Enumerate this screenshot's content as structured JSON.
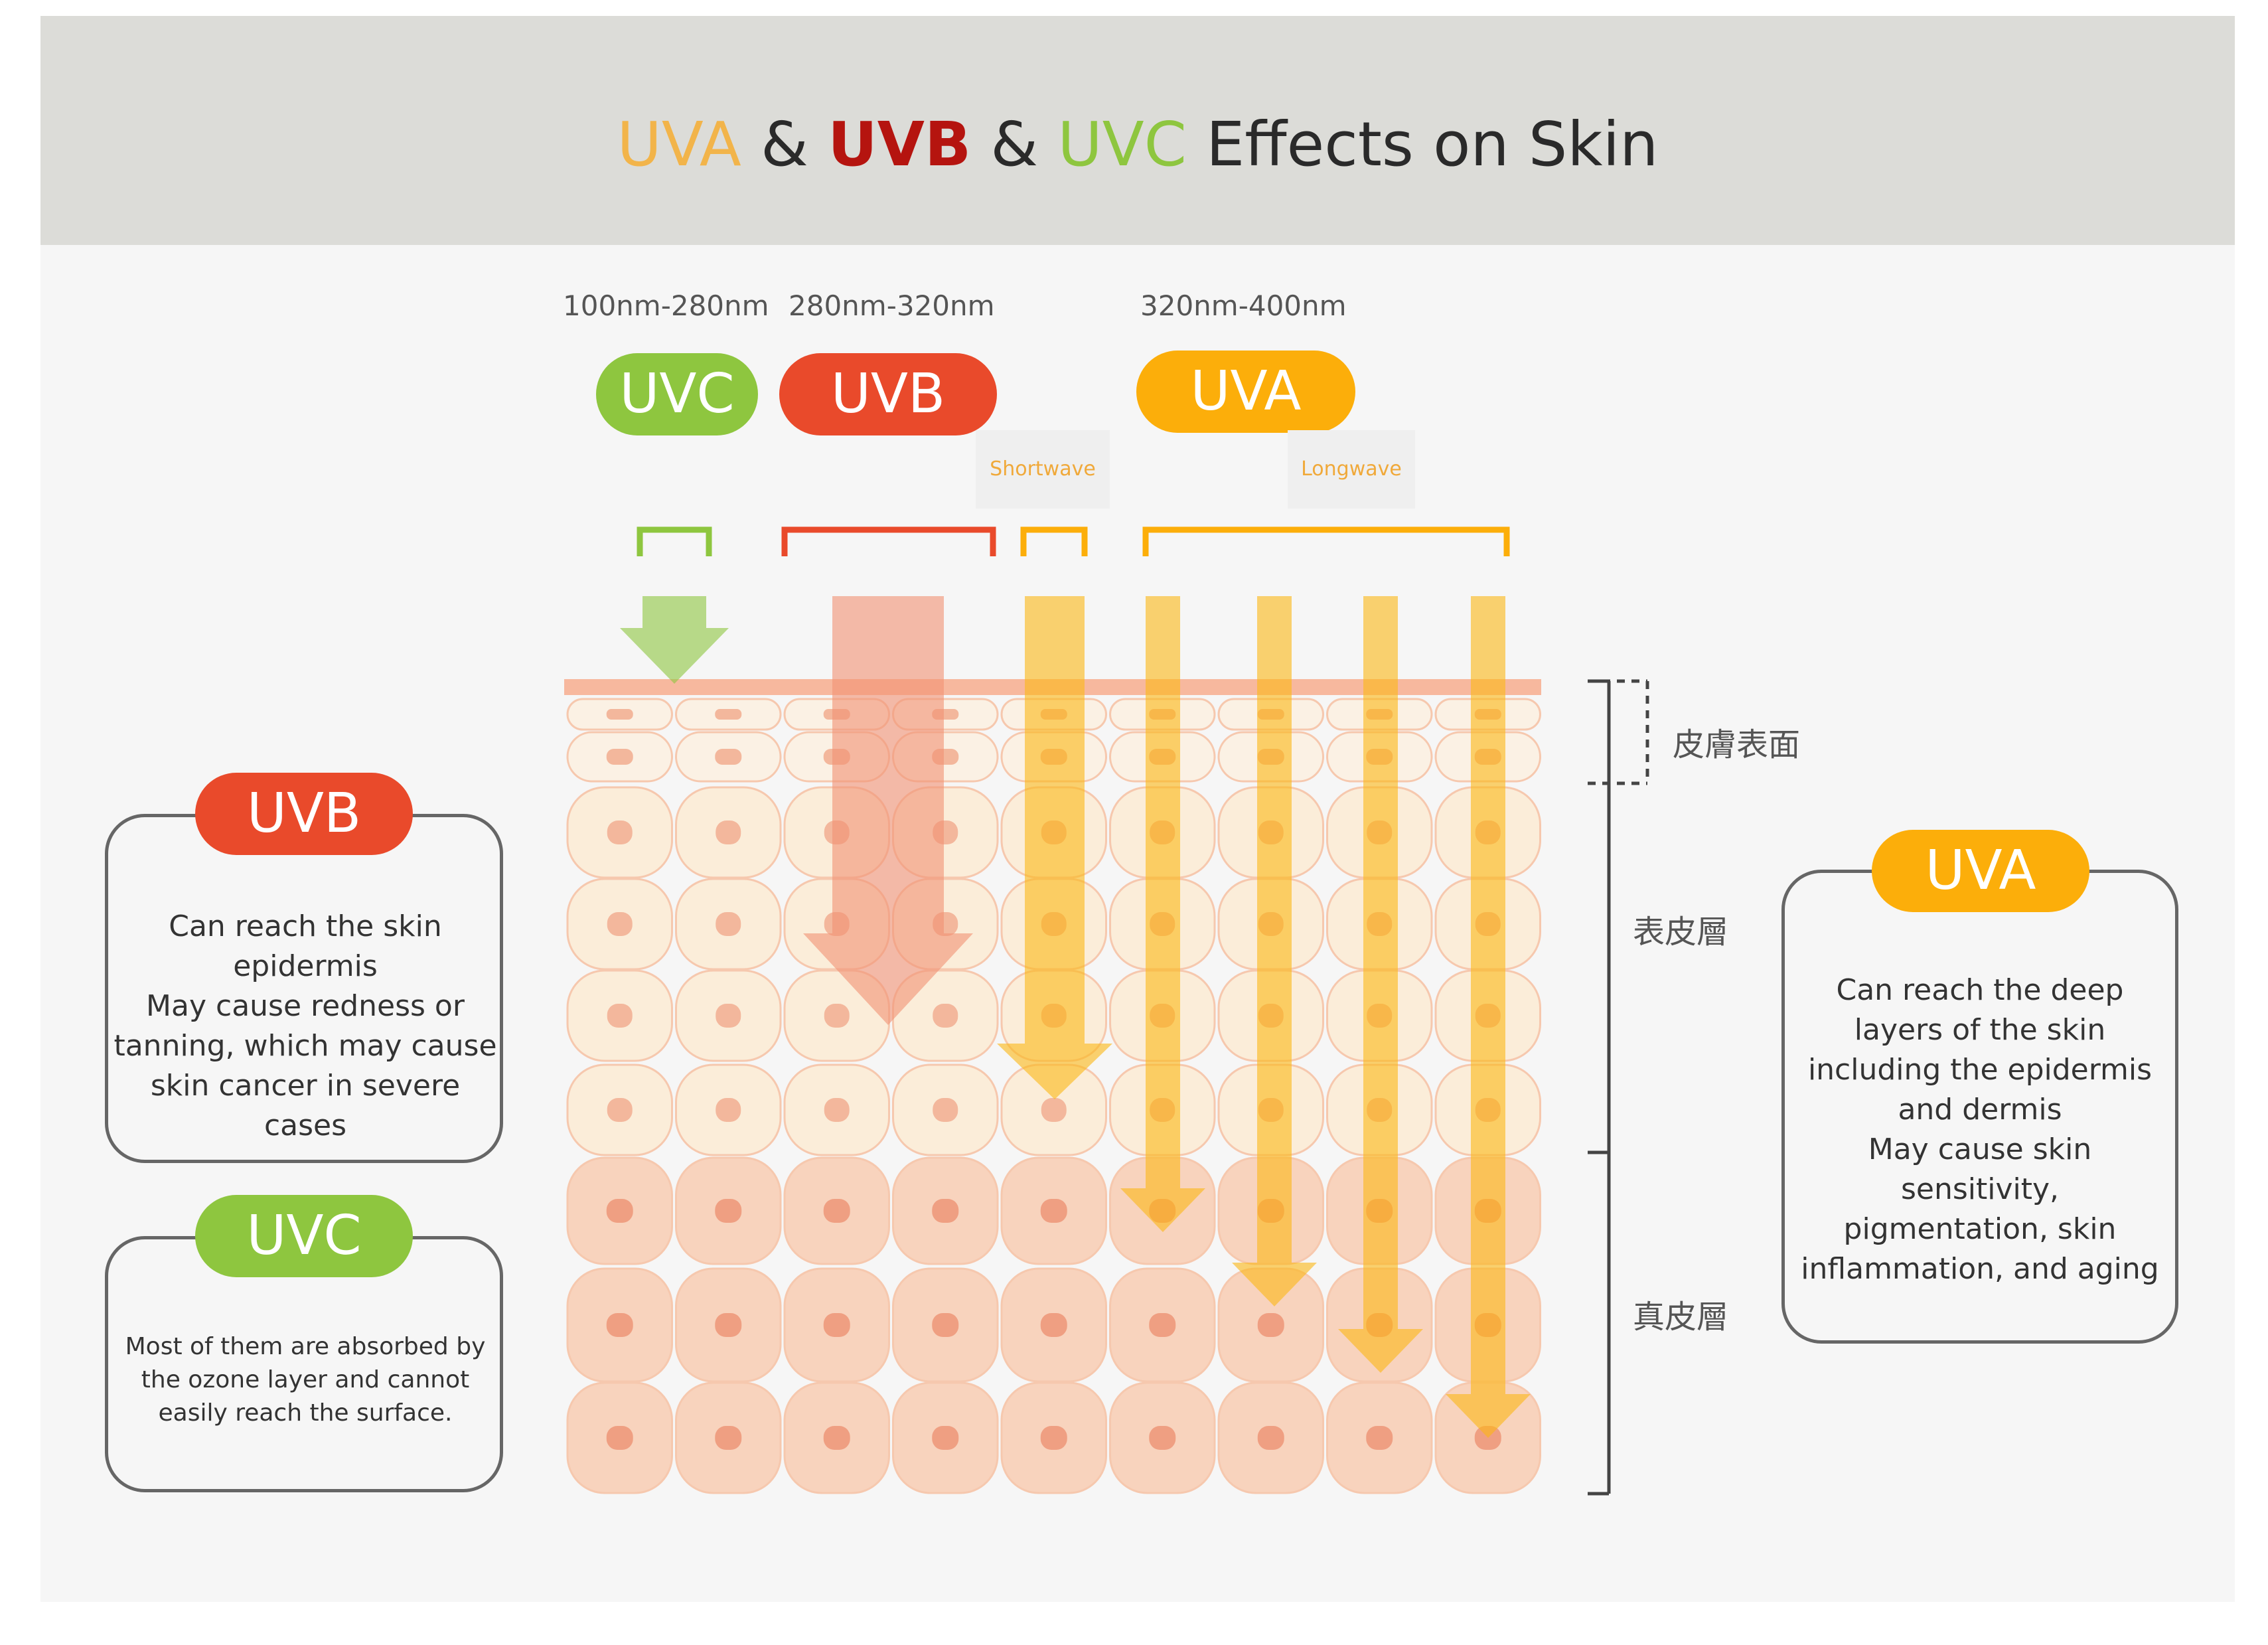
{
  "title": {
    "uva": "UVA",
    "amp1": " & ",
    "uvb": "UVB",
    "amp2": " & ",
    "uvc": "UVC",
    "rest": " Effects on Skin"
  },
  "ranges": {
    "uvc": "100nm-280nm",
    "uvb": "280nm-320nm",
    "uva": "320nm-400nm"
  },
  "pills": {
    "uvc": "UVC",
    "uvb": "UVB",
    "uva": "UVA"
  },
  "tags": {
    "shortwave": "Shortwave",
    "longwave": "Longwave"
  },
  "skin_layers": {
    "surface": "皮膚表面",
    "epidermis": "表皮層",
    "dermis": "真皮層"
  },
  "cards": {
    "uvb": {
      "label": "UVB",
      "lines": [
        "Can reach the skin",
        "epidermis",
        "May cause redness or",
        "tanning, which may cause",
        "skin cancer in severe cases"
      ]
    },
    "uvc": {
      "label": "UVC",
      "lines": [
        "Most of them are absorbed by",
        "the ozone layer and cannot",
        "easily reach the surface."
      ]
    },
    "uva": {
      "label": "UVA",
      "lines": [
        "Can reach the deep",
        "layers of the skin",
        "including the epidermis",
        "and dermis",
        "May cause skin",
        "sensitivity,",
        "pigmentation, skin",
        "inflammation, and aging"
      ]
    }
  },
  "colors": {
    "uvc": "#8ec63f",
    "uvb": "#e94a2b",
    "uva": "#fcae0a",
    "uvb_title": "#b5140f",
    "uva_title": "#f2b44a"
  }
}
